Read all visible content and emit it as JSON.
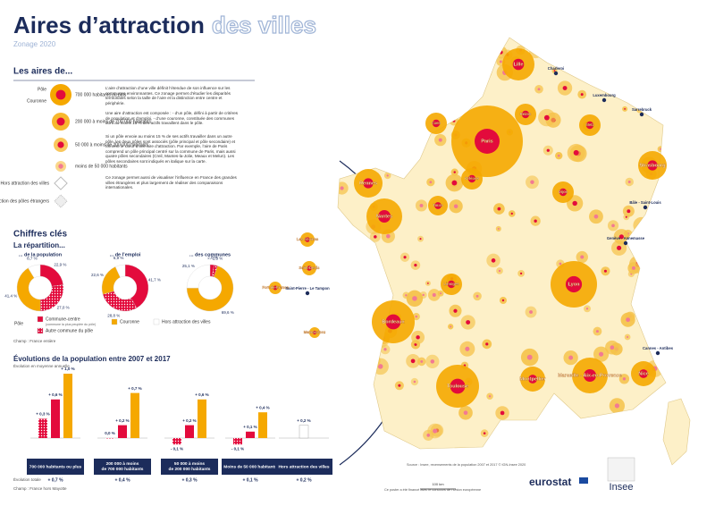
{
  "header": {
    "title_main": "Aires d’attraction",
    "title_accent": "des villes",
    "subtitle": "Zonage 2020"
  },
  "legend": {
    "heading": "Les aires de...",
    "pole": "Pôle",
    "couronne": "Couronne",
    "classes": [
      "700 000 habitants ou plus",
      "200 000 à moins de 700 000 habitants",
      "50 000 à moins de 200 000 habitants",
      "moins de 50 000 habitants"
    ],
    "hors": "Hors attraction des villes",
    "etrangers": "Attraction des pôles étrangers",
    "paragraphs": [
      "L’aire d’attraction d’une ville définit l’étendue de son influence sur les communes environnantes. Ce zonage permet d’étudier les disparités territoriales selon la taille de l’aire et la distinction entre centre et périphérie.",
      "Une aire d’attraction est composée : - d’un pôle, défini à partir de critères de population et d’emploi, - d’une couronne, constituée des communes dont au moins 15 % des actifs travaillent dans le pôle.",
      "Si un pôle envoie au moins 15 % de ses actifs travailler dans un autre pôle, les deux pôles sont associés (pôle principal et pôle secondaire) et forment le cœur d’une aire d’attraction. Par exemple, l’aire de Paris comprend un pôle principal centré sur la commune de Paris, mais aussi quatre pôles secondaires (Creil, Mantes-la-Jolie, Meaux et Melun). Les pôles secondaires sont indiqués en italique sur la carte.",
      "Ce zonage permet aussi de visualiser l’influence en France des grandes villes étrangères et plus largement de réaliser des comparaisons internationales."
    ]
  },
  "key_figures": {
    "heading": "Chiffres clés",
    "subheading": "La répartition...",
    "segment_names": [
      "Commune-centre",
      "Autre commune du pôle",
      "Couronne",
      "Hors attraction des villes"
    ],
    "colors": [
      "#e30b3c",
      "#f27a93",
      "#f5a800",
      "#ffffff"
    ],
    "commune_centre_note": "(commune la plus peuplée du pôle)",
    "pole_label": "Pôle",
    "donuts": [
      {
        "title": "... de la population",
        "values": [
          22.9,
          27,
          41.4,
          8.7
        ],
        "value_labels": [
          "22,9 %",
          "27,0 %",
          "41,4 %",
          "8,7 %"
        ]
      },
      {
        "title": "... de l’emploi",
        "values": [
          41.7,
          28.8,
          22.6,
          6.9
        ],
        "value_labels": [
          "41,7 %",
          "28,8 %",
          "22,6 %",
          "6,9 %"
        ]
      },
      {
        "title": "... des communes",
        "values": [
          2.8,
          2.5,
          69.6,
          25.1
        ],
        "value_labels": [
          "2,8 %",
          "2,5 %",
          "69,6 %",
          "25,1 %"
        ]
      }
    ],
    "scope": "Champ : France entière"
  },
  "evolution": {
    "title": "Évolutions de la population entre 2007 et 2017",
    "subtitle": "Évolution en moyenne annuelle",
    "categories": [
      "700 000 habitants ou plus",
      "200 000 à moins de 700 000 habitants",
      "50 000 à moins de 200 000 habitants",
      "Moins de 50 000 habitants",
      "Hors attraction des villes"
    ],
    "series": [
      {
        "color": "#f27a93",
        "values": [
          0.3,
          0,
          -0.1,
          -0.1,
          null
        ],
        "value_labels": [
          "+ 0,3 %",
          "0,0 %",
          "- 0,1 %",
          "- 0,1 %",
          null
        ]
      },
      {
        "color": "#e30b3c",
        "values": [
          0.6,
          0.2,
          0.2,
          0.1,
          null
        ],
        "value_labels": [
          "+ 0,6 %",
          "+ 0,2 %",
          "+ 0,2 %",
          "+ 0,1 %",
          null
        ]
      },
      {
        "color": "#f5a800",
        "values": [
          1,
          0.7,
          0.6,
          0.4,
          null
        ],
        "value_labels": [
          "+ 1,0 %",
          "+ 0,7 %",
          "+ 0,6 %",
          "+ 0,4 %",
          null
        ]
      },
      {
        "color": "#ffffff",
        "values": [
          null,
          null,
          null,
          null,
          0.2
        ],
        "value_labels": [
          null,
          null,
          null,
          null,
          "+ 0,2 %"
        ]
      }
    ],
    "total_label": "Évolution totale",
    "totals": [
      0.7,
      0.4,
      0.3,
      0.1,
      0.2
    ],
    "total_labels": [
      "+ 0,7 %",
      "+ 0,4 %",
      "+ 0,3 %",
      "+ 0,1 %",
      "+ 0,2 %"
    ],
    "scope": "Champ : France hors Mayotte"
  },
  "map": {
    "cities": [
      "Paris",
      "Lille",
      "Lyon",
      "Marseille - Aix-en-Provence",
      "Toulouse",
      "Bordeaux",
      "Nantes",
      "Rennes",
      "Strasbourg",
      "Nice",
      "Montpellier",
      "Caen",
      "Orléans",
      "Tours",
      "Dijon",
      "Limoges",
      "Reims",
      "Metz",
      "Luxembourg",
      "Sarrebruck",
      "Charleroi",
      "Bâle - Saint-Louis",
      "Genève - Annemasse",
      "Cannes - Antibes",
      "Les Abymes",
      "Fort-de-France",
      "Saint-Denis",
      "Saint-Pierre - Le Tampon",
      "Mamoudzou"
    ],
    "scale": "100 km"
  },
  "footer": {
    "source": "Source : Insee, recensements de la population 2007 et 2017 © IGN-Insee 2020",
    "cofund": "Ce poster a été financé avec le concours de l’Union européenne",
    "eurostat": "eurostat",
    "insee": "Insee"
  }
}
